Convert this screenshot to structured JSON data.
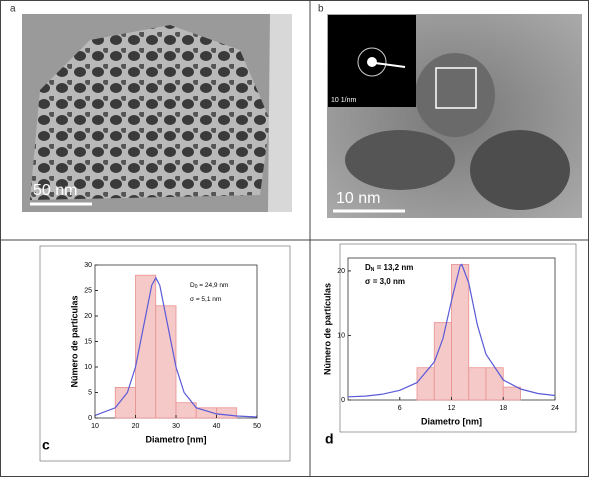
{
  "panels": [
    {
      "label": "a",
      "scale_bar": "50 nm"
    },
    {
      "label": "b",
      "scale_bar": "10 nm",
      "inset_scale": "10 1/nm"
    }
  ],
  "chart_data": [
    {
      "type": "histogram",
      "label": "c",
      "xlabel": "Diametro [nm]",
      "ylabel": "Número de partículas",
      "bins": [
        15,
        20,
        25,
        30,
        35,
        40,
        45
      ],
      "counts": [
        6,
        28,
        22,
        3,
        2,
        2
      ],
      "color": "#f6c9c9",
      "edge_color": "#e89090",
      "fit": {
        "color": "#5a5ad8",
        "x": [
          10,
          15,
          18,
          20,
          22,
          24,
          25,
          26,
          28,
          30,
          32,
          35,
          40,
          45,
          50
        ],
        "y": [
          0.5,
          2,
          5,
          10,
          18,
          26,
          27.5,
          26,
          18,
          10,
          5,
          2,
          0.8,
          0.4,
          0.2
        ]
      },
      "annotations": [
        {
          "symbol": "D",
          "subscript": "0",
          "text": " = 24,9 nm"
        },
        {
          "symbol": "σ",
          "text": " = 5,1 nm"
        }
      ],
      "xlim": [
        10,
        50
      ],
      "xticks": [
        10,
        20,
        30,
        40,
        50
      ],
      "ylim": [
        0,
        30
      ],
      "yticks": [
        0,
        5,
        10,
        15,
        20,
        25,
        30
      ]
    },
    {
      "type": "histogram",
      "label": "d",
      "xlabel": "Diametro [nm]",
      "ylabel": "Número de partículas",
      "bins": [
        8,
        10,
        12,
        14,
        16,
        18,
        20
      ],
      "counts": [
        5,
        12,
        21,
        5,
        5,
        2
      ],
      "color": "#f6c9c9",
      "edge_color": "#e89090",
      "fit": {
        "color": "#5a5ad8",
        "x": [
          0,
          2,
          4,
          6,
          8,
          10,
          11,
          12,
          13,
          13.2,
          14,
          15,
          16,
          18,
          20,
          22,
          24
        ],
        "y": [
          0.5,
          0.6,
          0.9,
          1.5,
          2.7,
          5.9,
          9.5,
          15.4,
          20.8,
          21,
          18.1,
          11.6,
          7.1,
          3.1,
          1.7,
          1.0,
          0.7
        ]
      },
      "annotations": [
        {
          "symbol": "D",
          "subscript": "N",
          "text": " = 13,2 nm"
        },
        {
          "symbol": "σ",
          "text": " = 3,0 nm"
        }
      ],
      "xlim": [
        0,
        24
      ],
      "xticks": [
        6,
        12,
        18,
        24
      ],
      "ylim": [
        0,
        22
      ],
      "yticks": [
        0,
        10,
        20
      ]
    }
  ]
}
